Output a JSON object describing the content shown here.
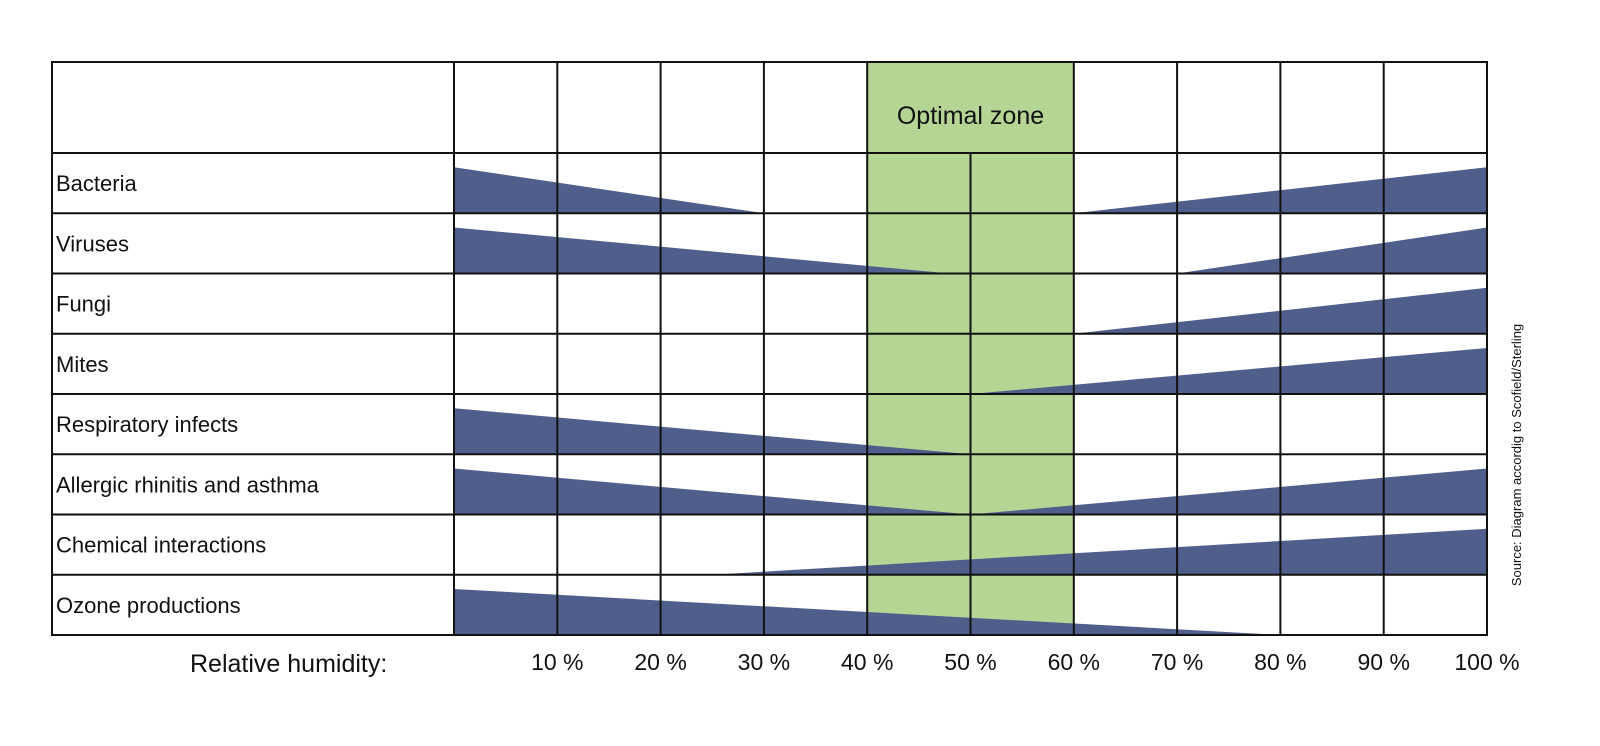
{
  "chart_data": {
    "type": "bar",
    "title": "",
    "xlabel": "Relative humidity:",
    "xlim": [
      0,
      100
    ],
    "x_ticks": [
      "10 %",
      "20 %",
      "30 %",
      "40 %",
      "50 %",
      "60 %",
      "70 %",
      "80 %",
      "90 %",
      "100 %"
    ],
    "optimal_zone": {
      "label": "Optimal zone",
      "from": 40,
      "to": 60
    },
    "source": "Source: Diagram accordig to Scofield/Sterling",
    "colors": {
      "wedge": "#505e8c",
      "zone": "#b5d595",
      "grid": "#111111"
    },
    "categories": [
      {
        "name": "Bacteria",
        "wedges": [
          {
            "from": 0,
            "to": 30,
            "peak": "left"
          },
          {
            "from": 60,
            "to": 100,
            "peak": "right"
          }
        ]
      },
      {
        "name": "Viruses",
        "wedges": [
          {
            "from": 0,
            "to": 48,
            "peak": "left"
          },
          {
            "from": 70,
            "to": 100,
            "peak": "right"
          }
        ]
      },
      {
        "name": "Fungi",
        "wedges": [
          {
            "from": 60,
            "to": 100,
            "peak": "right"
          }
        ]
      },
      {
        "name": "Mites",
        "wedges": [
          {
            "from": 50,
            "to": 100,
            "peak": "right"
          }
        ]
      },
      {
        "name": "Respiratory infects",
        "wedges": [
          {
            "from": 0,
            "to": 50,
            "peak": "left"
          }
        ]
      },
      {
        "name": "Allergic rhinitis and asthma",
        "wedges": [
          {
            "from": 0,
            "to": 50,
            "peak": "left"
          },
          {
            "from": 50,
            "to": 100,
            "peak": "right"
          }
        ]
      },
      {
        "name": "Chemical interactions",
        "wedges": [
          {
            "from": 25,
            "to": 100,
            "peak": "right"
          }
        ]
      },
      {
        "name": "Ozone productions",
        "wedges": [
          {
            "from": 0,
            "to": 80,
            "peak": "left"
          }
        ]
      }
    ]
  }
}
